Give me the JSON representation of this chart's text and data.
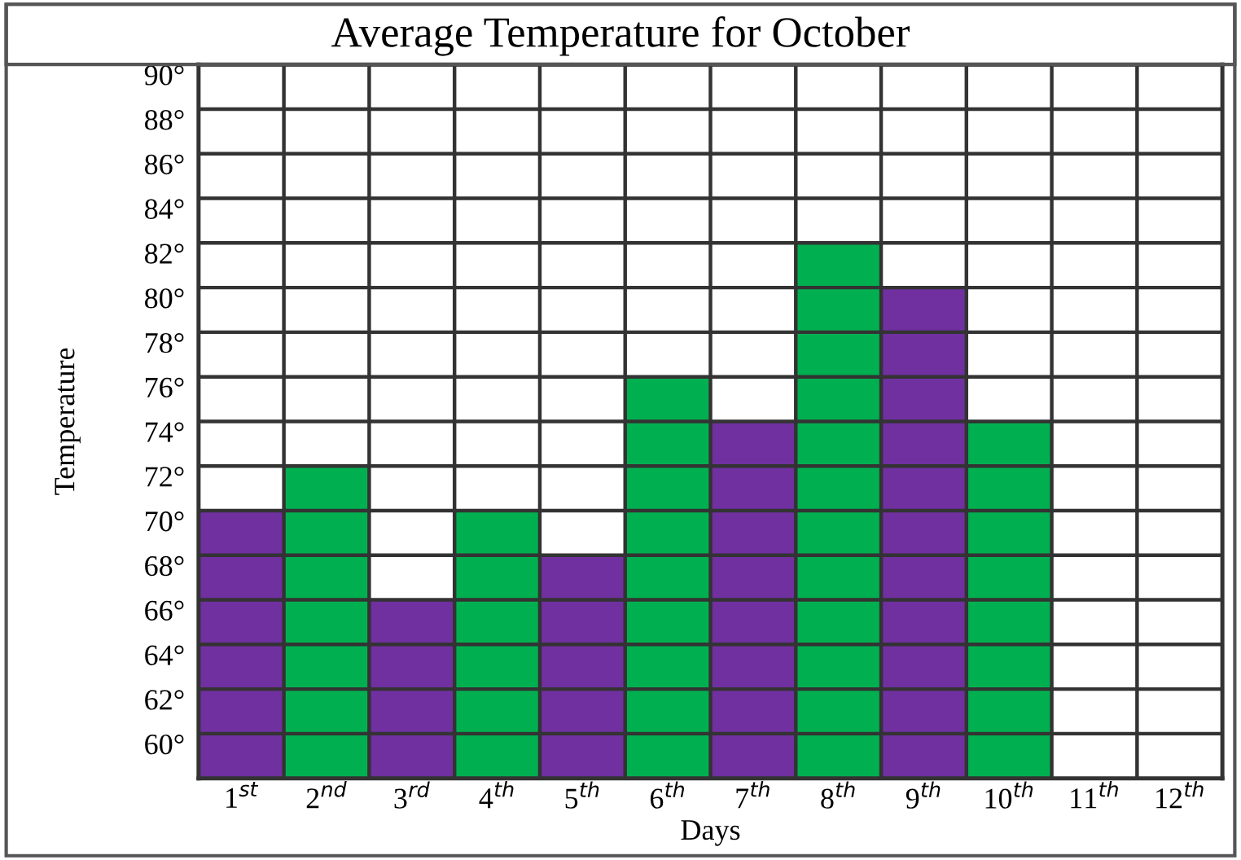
{
  "chart_data": {
    "type": "bar",
    "title": "Average Temperature for October",
    "xlabel": "Days",
    "ylabel": "Temperature",
    "categories": [
      "1$^{st}$",
      "2$^{nd}$",
      "3$^{rd}$",
      "4$^{th}$",
      "5$^{th}$",
      "6$^{th}$",
      "7$^{th}$",
      "8$^{th}$",
      "9$^{th}$",
      "10$^{th}$",
      "11$^{th}$",
      "12$^{th}$"
    ],
    "values": [
      70,
      72,
      66,
      70,
      68,
      76,
      74,
      82,
      80,
      74,
      null,
      null
    ],
    "colors": [
      "#7030a0",
      "#00b050",
      "#7030a0",
      "#00b050",
      "#7030a0",
      "#00b050",
      "#7030a0",
      "#00b050",
      "#7030a0",
      "#00b050",
      "#7030a0",
      "#00b050"
    ],
    "ylim": [
      58,
      90
    ],
    "yticks": [
      {
        "value": 60,
        "label": "60°"
      },
      {
        "value": 62,
        "label": "62°"
      },
      {
        "value": 64,
        "label": "64°"
      },
      {
        "value": 66,
        "label": "66°"
      },
      {
        "value": 68,
        "label": "68°"
      },
      {
        "value": 70,
        "label": "70°"
      },
      {
        "value": 72,
        "label": "72°"
      },
      {
        "value": 74,
        "label": "74°"
      },
      {
        "value": 76,
        "label": "76°"
      },
      {
        "value": 78,
        "label": "78°"
      },
      {
        "value": 80,
        "label": "80°"
      },
      {
        "value": 82,
        "label": "82°"
      },
      {
        "value": 84,
        "label": "84°"
      },
      {
        "value": 86,
        "label": "86°"
      },
      {
        "value": 88,
        "label": "88°"
      },
      {
        "value": 90,
        "label": "90°"
      }
    ],
    "grid": true
  }
}
